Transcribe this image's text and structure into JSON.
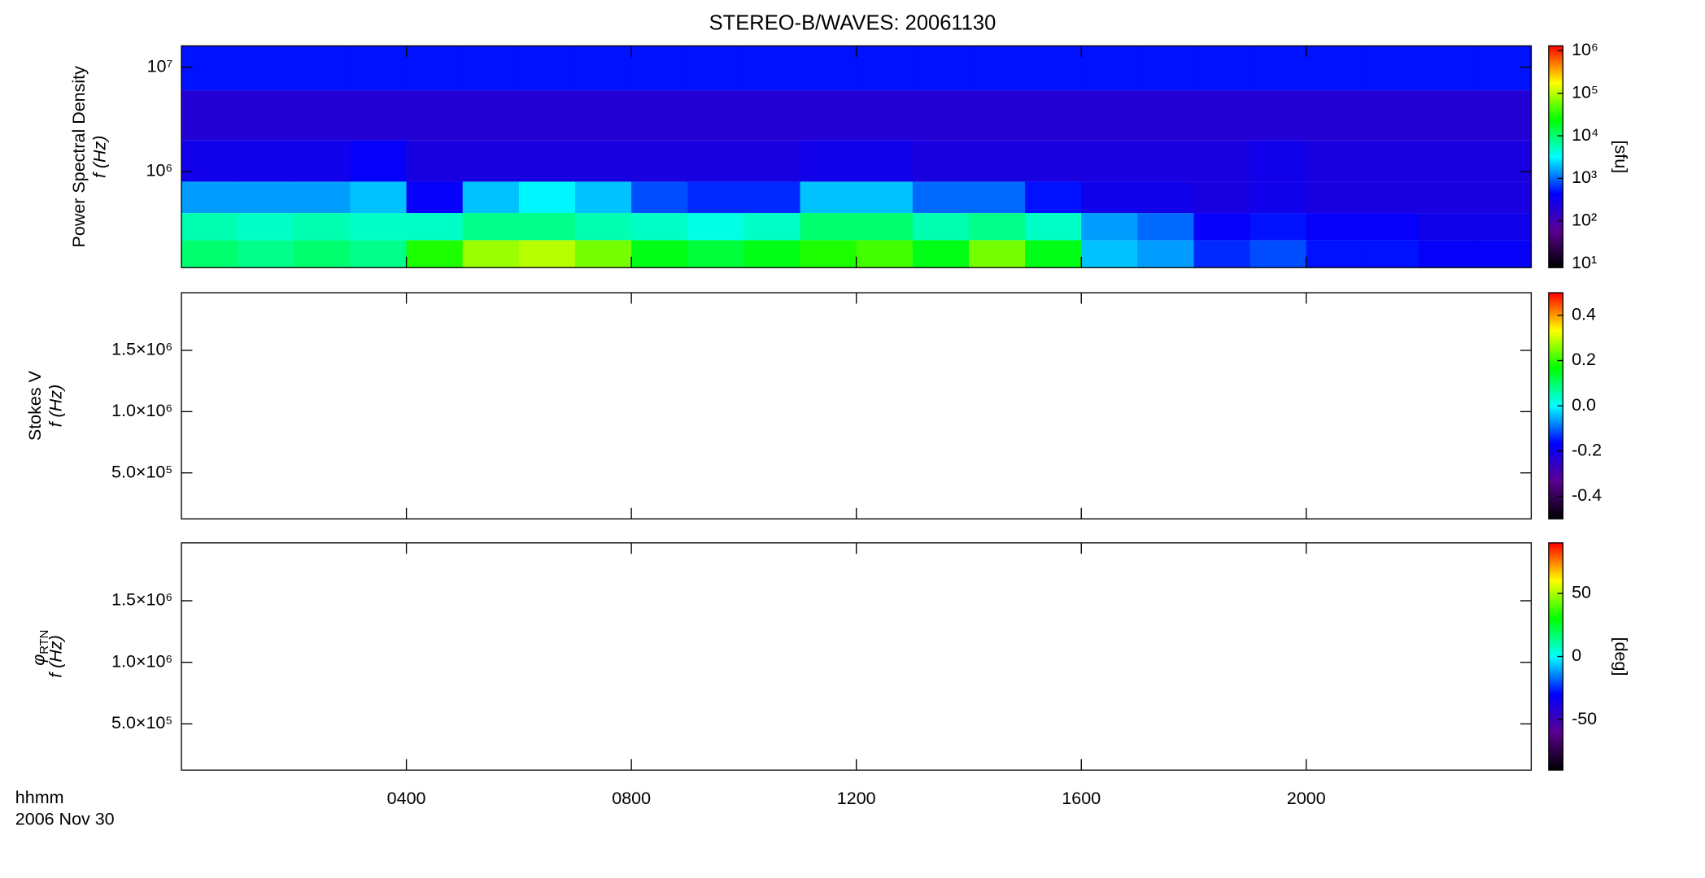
{
  "title": "STEREO-B/WAVES: 20061130",
  "x_label": "hhmm",
  "date_label": "2006 Nov 30",
  "colormap": [
    "#000000",
    "#5a0090",
    "#0000ff",
    "#00ffff",
    "#00ff00",
    "#ffff00",
    "#ff0000"
  ],
  "chart_data": [
    {
      "type": "heatmap",
      "ylabel": [
        "Power Spectral Density",
        "f (Hz)"
      ],
      "colorbar_label": "[sfu]",
      "xbins": [
        0,
        1,
        2,
        3,
        4,
        5,
        6,
        7,
        8,
        9,
        10,
        11,
        12,
        13,
        14,
        15,
        16,
        17,
        18,
        19,
        20,
        21,
        22,
        23,
        24
      ],
      "ybins": [
        120000,
        220000,
        400000,
        800000,
        2000000,
        6000000,
        16000000
      ],
      "z": [
        [
          10000,
          8000,
          10000,
          8000,
          30000,
          80000,
          100000,
          60000,
          20000,
          15000,
          20000,
          30000,
          40000,
          20000,
          60000,
          20000,
          2000,
          1500,
          600,
          800,
          500,
          500,
          400,
          400
        ],
        [
          6000,
          5000,
          6000,
          5000,
          5000,
          8000,
          8000,
          6000,
          5000,
          4000,
          5000,
          10000,
          10000,
          6000,
          8000,
          5000,
          1500,
          1000,
          400,
          500,
          400,
          400,
          300,
          300
        ],
        [
          1500,
          1500,
          1500,
          2000,
          400,
          2000,
          3000,
          2000,
          800,
          600,
          600,
          2000,
          2000,
          1000,
          1000,
          500,
          300,
          300,
          250,
          300,
          250,
          250,
          250,
          250
        ],
        [
          300,
          300,
          300,
          400,
          250,
          250,
          250,
          250,
          250,
          250,
          250,
          300,
          300,
          250,
          250,
          250,
          250,
          250,
          250,
          300,
          250,
          250,
          250,
          250
        ],
        [
          200,
          200,
          200,
          200,
          200,
          200,
          200,
          200,
          200,
          200,
          200,
          200,
          200,
          200,
          200,
          200,
          200,
          200,
          200,
          200,
          200,
          200,
          200,
          200
        ],
        [
          500,
          500,
          500,
          500,
          500,
          500,
          500,
          500,
          500,
          500,
          500,
          500,
          500,
          500,
          500,
          500,
          500,
          500,
          500,
          500,
          500,
          500,
          500,
          500
        ]
      ],
      "ylim": [
        120000,
        16000000
      ],
      "log_y": true,
      "yticks": [
        {
          "value": 1000000,
          "label": "10⁶"
        },
        {
          "value": 10000000,
          "label": "10⁷"
        }
      ],
      "clim": [
        8,
        1300000
      ],
      "log_c": true,
      "cticks": [
        {
          "value": 10,
          "label": "10¹"
        },
        {
          "value": 100,
          "label": "10²"
        },
        {
          "value": 1000,
          "label": "10³"
        },
        {
          "value": 10000,
          "label": "10⁴"
        },
        {
          "value": 100000,
          "label": "10⁵"
        },
        {
          "value": 1000000,
          "label": "10⁶"
        }
      ]
    },
    {
      "type": "heatmap",
      "ylabel": [
        "Stokes V",
        "f (Hz)"
      ],
      "ylim": [
        125000,
        1970000
      ],
      "yticks": [
        {
          "value": 500000,
          "label": "5.0×10⁵"
        },
        {
          "value": 1000000,
          "label": "1.0×10⁶"
        },
        {
          "value": 1500000,
          "label": "1.5×10⁶"
        }
      ],
      "clim": [
        -0.5,
        0.5
      ],
      "cticks": [
        -0.4,
        -0.2,
        {
          "value": 0,
          "label": "0.0"
        },
        0.2,
        0.4
      ]
    },
    {
      "type": "heatmap",
      "ylabel": [
        "φ",
        "RTN",
        "f (Hz)"
      ],
      "colorbar_label": "[deg]",
      "ylim": [
        125000,
        1970000
      ],
      "yticks": [
        {
          "value": 500000,
          "label": "5.0×10⁵"
        },
        {
          "value": 1000000,
          "label": "1.0×10⁶"
        },
        {
          "value": 1500000,
          "label": "1.5×10⁶"
        }
      ],
      "clim": [
        -90,
        90
      ],
      "cticks": [
        -50,
        0,
        50
      ],
      "xlim": [
        0,
        24
      ],
      "xticks": [
        {
          "value": 4,
          "label": "0400"
        },
        {
          "value": 8,
          "label": "0800"
        },
        {
          "value": 12,
          "label": "1200"
        },
        {
          "value": 16,
          "label": "1600"
        },
        {
          "value": 20,
          "label": "2000"
        }
      ]
    }
  ]
}
